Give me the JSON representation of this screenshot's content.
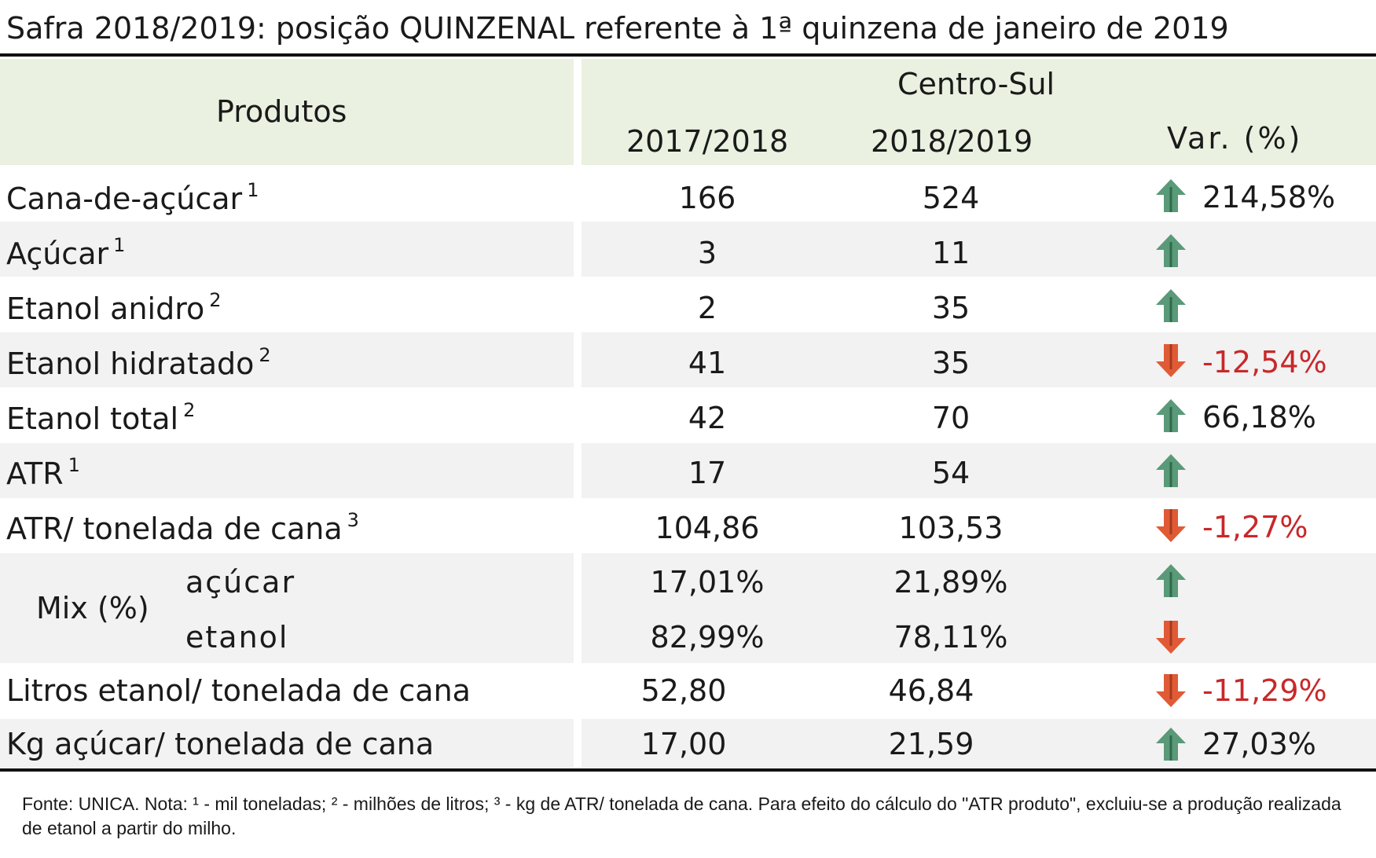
{
  "title": "Safra 2018/2019: posição QUINZENAL referente à 1ª quinzena de janeiro de 2019",
  "header": {
    "produtos": "Produtos",
    "region": "Centro-Sul",
    "col1": "2017/2018",
    "col2": "2018/2019",
    "col3": "Var. (%)"
  },
  "rows": [
    {
      "label": "Cana-de-açúcar",
      "note": "1",
      "v1": "166",
      "v2": "524",
      "dir": "up",
      "pct": "214,58%"
    },
    {
      "label": "Açúcar",
      "note": "1",
      "v1": "3",
      "v2": "11",
      "dir": "up",
      "pct": ""
    },
    {
      "label": "Etanol anidro",
      "note": "2",
      "v1": "2",
      "v2": "35",
      "dir": "up",
      "pct": ""
    },
    {
      "label": "Etanol hidratado",
      "note": "2",
      "v1": "41",
      "v2": "35",
      "dir": "down",
      "pct": "-12,54%"
    },
    {
      "label": "Etanol total",
      "note": "2",
      "v1": "42",
      "v2": "70",
      "dir": "up",
      "pct": "66,18%"
    },
    {
      "label": "ATR",
      "note": "1",
      "v1": "17",
      "v2": "54",
      "dir": "up",
      "pct": ""
    },
    {
      "label": "ATR/ tonelada de cana",
      "note": "3",
      "v1": "104,86",
      "v2": "103,53",
      "dir": "down",
      "pct": "-1,27%"
    }
  ],
  "mix": {
    "label": "Mix (%)",
    "acucar": {
      "label": "açúcar",
      "v1": "17,01%",
      "v2": "21,89%",
      "dir": "up"
    },
    "etanol": {
      "label": "etanol",
      "v1": "82,99%",
      "v2": "78,11%",
      "dir": "down"
    }
  },
  "rows2": [
    {
      "label": "Litros etanol/ tonelada de cana",
      "v1": "52,80",
      "v2": "46,84",
      "dir": "down",
      "pct": "-11,29%"
    },
    {
      "label": "Kg açúcar/ tonelada de cana",
      "v1": "17,00",
      "v2": "21,59",
      "dir": "up",
      "pct": "27,03%"
    }
  ],
  "footnote": "Fonte: UNICA. Nota: ¹ - mil toneladas; ² - milhões de litros; ³ - kg de ATR/ tonelada de cana. Para efeito do cálculo do \"ATR produto\", excluiu-se a produção realizada de etanol a partir do milho.",
  "colors": {
    "up": "#5a9a78",
    "down": "#e05a35",
    "negative_text": "#c8282a",
    "header_bg": "#eaf1e0",
    "stripe_bg": "#f2f2f2"
  }
}
